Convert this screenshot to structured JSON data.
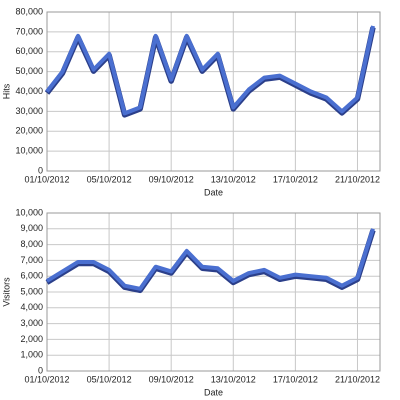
{
  "chart_data": [
    {
      "type": "line",
      "x_label": "Date",
      "y_label": "Hits",
      "x": [
        "01/10/2012",
        "02/10/2012",
        "03/10/2012",
        "04/10/2012",
        "05/10/2012",
        "06/10/2012",
        "07/10/2012",
        "08/10/2012",
        "09/10/2012",
        "10/10/2012",
        "11/10/2012",
        "12/10/2012",
        "13/10/2012",
        "14/10/2012",
        "15/10/2012",
        "16/10/2012",
        "17/10/2012",
        "18/10/2012",
        "19/10/2012",
        "20/10/2012",
        "21/10/2012",
        "22/10/2012"
      ],
      "xticks": [
        "01/10/2012",
        "05/10/2012",
        "09/10/2012",
        "13/10/2012",
        "17/10/2012",
        "21/10/2012"
      ],
      "series": [
        {
          "color": "#4a6fd0",
          "values": [
            40000,
            50000,
            68000,
            51000,
            59000,
            29000,
            32000,
            68000,
            46000,
            68000,
            51000,
            59000,
            32000,
            41000,
            47000,
            48000,
            44000,
            40000,
            37000,
            30000,
            37000,
            73000
          ]
        }
      ],
      "ylim": [
        0,
        80000
      ],
      "yticks": [
        0,
        {
          "value": 10000,
          "label": "10,000"
        },
        {
          "value": 20000,
          "label": "20,000"
        },
        {
          "value": 30000,
          "label": "30,000"
        },
        {
          "value": 40000,
          "label": "40,000"
        },
        {
          "value": 50000,
          "label": "50,000"
        },
        {
          "value": 60000,
          "label": "60,000"
        },
        {
          "value": 70000,
          "label": "70,000"
        },
        {
          "value": 80000,
          "label": "80,000"
        }
      ],
      "grid": true
    },
    {
      "type": "line",
      "x_label": "Date",
      "y_label": "Visitors",
      "x": [
        "01/10/2012",
        "02/10/2012",
        "03/10/2012",
        "04/10/2012",
        "05/10/2012",
        "06/10/2012",
        "07/10/2012",
        "08/10/2012",
        "09/10/2012",
        "10/10/2012",
        "11/10/2012",
        "12/10/2012",
        "13/10/2012",
        "14/10/2012",
        "15/10/2012",
        "16/10/2012",
        "17/10/2012",
        "18/10/2012",
        "19/10/2012",
        "20/10/2012",
        "21/10/2012",
        "22/10/2012"
      ],
      "xticks": [
        "01/10/2012",
        "05/10/2012",
        "09/10/2012",
        "13/10/2012",
        "17/10/2012",
        "21/10/2012"
      ],
      "series": [
        {
          "color": "#4a6fd0",
          "values": [
            5700,
            6300,
            6900,
            6900,
            6400,
            5400,
            5200,
            6600,
            6300,
            7600,
            6600,
            6500,
            5700,
            6200,
            6400,
            5900,
            6100,
            6000,
            5900,
            5400,
            5900,
            9000
          ]
        }
      ],
      "ylim": [
        0,
        10000
      ],
      "yticks": [
        0,
        {
          "value": 1000,
          "label": "1,000"
        },
        {
          "value": 2000,
          "label": "2,000"
        },
        {
          "value": 3000,
          "label": "3,000"
        },
        {
          "value": 4000,
          "label": "4,000"
        },
        {
          "value": 5000,
          "label": "5,000"
        },
        {
          "value": 6000,
          "label": "6,000"
        },
        {
          "value": 7000,
          "label": "7,000"
        },
        {
          "value": 8000,
          "label": "8,000"
        },
        {
          "value": 9000,
          "label": "9,000"
        },
        {
          "value": 10000,
          "label": "10,000"
        }
      ],
      "grid": true
    }
  ]
}
